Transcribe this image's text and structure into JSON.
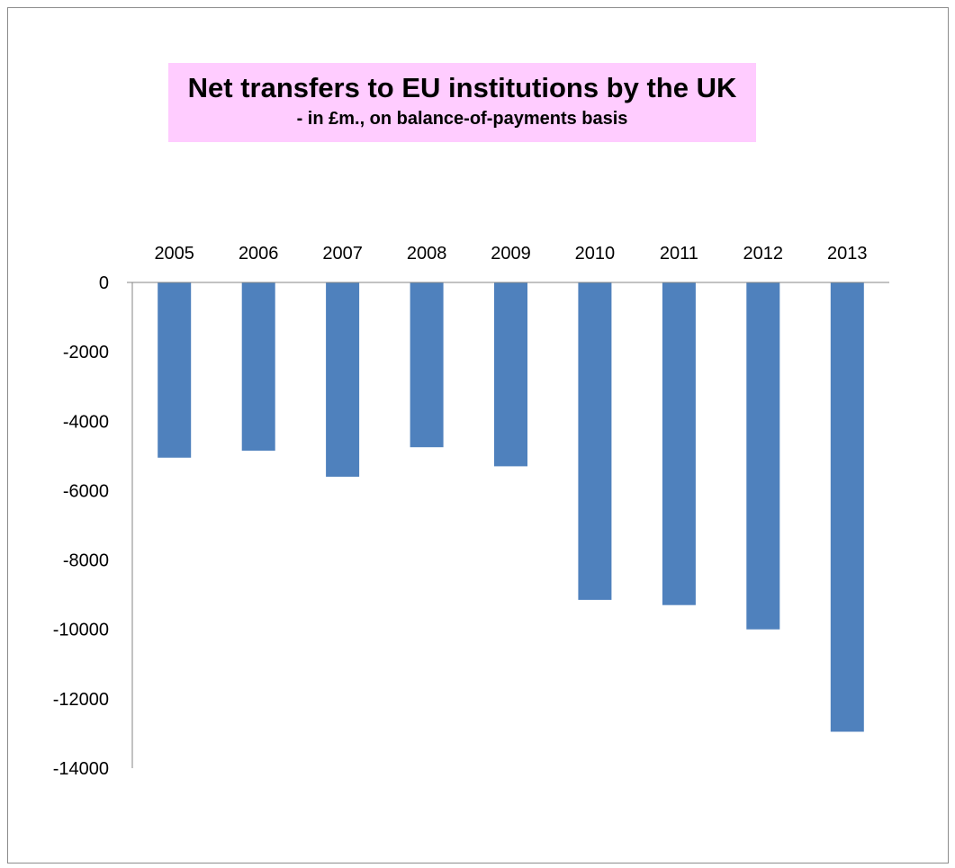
{
  "chart_data": {
    "type": "bar",
    "title": "Net transfers to EU institutions by the UK",
    "subtitle": "- in £m., on balance-of-payments basis",
    "categories": [
      "2005",
      "2006",
      "2007",
      "2008",
      "2009",
      "2010",
      "2011",
      "2012",
      "2013"
    ],
    "values": [
      -5050,
      -4850,
      -5600,
      -4750,
      -5300,
      -9150,
      -9300,
      -10000,
      -12950
    ],
    "yticks": [
      "0",
      "-2000",
      "-4000",
      "-6000",
      "-8000",
      "-10000",
      "-12000",
      "-14000"
    ],
    "ylim": [
      -14000,
      0
    ],
    "xlabel": "",
    "ylabel": "",
    "grid": false,
    "legend": "none",
    "bar_color": "#4f81bd",
    "title_background": "#ffccff"
  }
}
